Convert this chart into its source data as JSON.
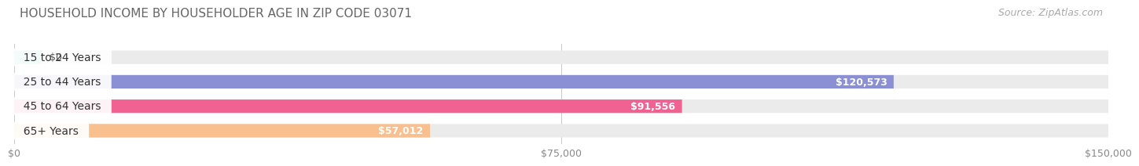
{
  "title": "HOUSEHOLD INCOME BY HOUSEHOLDER AGE IN ZIP CODE 03071",
  "source": "Source: ZipAtlas.com",
  "categories": [
    "15 to 24 Years",
    "25 to 44 Years",
    "45 to 64 Years",
    "65+ Years"
  ],
  "values": [
    0,
    120573,
    91556,
    57012
  ],
  "bar_colors": [
    "#5ecfca",
    "#8b8fd4",
    "#f06292",
    "#f9bf8f"
  ],
  "bar_bg_color": "#ebebeb",
  "value_labels": [
    "$0",
    "$120,573",
    "$91,556",
    "$57,012"
  ],
  "xmax": 150000,
  "xticks": [
    0,
    75000,
    150000
  ],
  "xtick_labels": [
    "$0",
    "$75,000",
    "$150,000"
  ],
  "background_color": "#ffffff",
  "title_fontsize": 11,
  "label_fontsize": 10,
  "source_fontsize": 9
}
